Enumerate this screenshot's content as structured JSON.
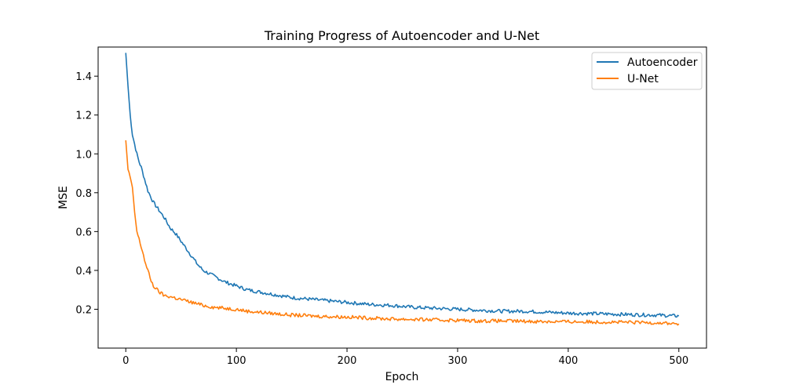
{
  "chart_data": {
    "type": "line",
    "title": "Training Progress of Autoencoder and U-Net",
    "xlabel": "Epoch",
    "ylabel": "MSE",
    "xlim": [
      -25,
      525
    ],
    "ylim": [
      0.0,
      1.55
    ],
    "xticks": [
      0,
      100,
      200,
      300,
      400,
      500
    ],
    "yticks": [
      0.2,
      0.4,
      0.6,
      0.8,
      1.0,
      1.2,
      1.4
    ],
    "xtick_labels": [
      "0",
      "100",
      "200",
      "300",
      "400",
      "500"
    ],
    "ytick_labels": [
      "0.2",
      "0.4",
      "0.6",
      "0.8",
      "1.0",
      "1.2",
      "1.4"
    ],
    "grid": false,
    "legend_position": "top-right",
    "series": [
      {
        "name": "Autoencoder",
        "color": "#1f77b4",
        "x": [
          0,
          2,
          4,
          6,
          8,
          10,
          12,
          14,
          16,
          18,
          20,
          25,
          30,
          35,
          40,
          45,
          50,
          55,
          60,
          65,
          70,
          80,
          90,
          100,
          110,
          120,
          130,
          140,
          150,
          160,
          170,
          180,
          190,
          200,
          220,
          240,
          260,
          280,
          300,
          320,
          340,
          360,
          380,
          400,
          420,
          440,
          460,
          480,
          500
        ],
        "values": [
          1.52,
          1.35,
          1.2,
          1.1,
          1.05,
          1.0,
          0.96,
          0.93,
          0.89,
          0.85,
          0.81,
          0.75,
          0.71,
          0.67,
          0.62,
          0.59,
          0.55,
          0.51,
          0.47,
          0.43,
          0.4,
          0.37,
          0.34,
          0.32,
          0.3,
          0.29,
          0.28,
          0.27,
          0.26,
          0.255,
          0.25,
          0.245,
          0.24,
          0.235,
          0.225,
          0.22,
          0.21,
          0.205,
          0.2,
          0.195,
          0.19,
          0.19,
          0.185,
          0.18,
          0.178,
          0.175,
          0.172,
          0.17,
          0.165
        ]
      },
      {
        "name": "U-Net",
        "color": "#ff7f0e",
        "x": [
          0,
          2,
          4,
          6,
          8,
          10,
          12,
          14,
          16,
          18,
          20,
          22,
          25,
          30,
          35,
          40,
          50,
          60,
          70,
          80,
          90,
          100,
          110,
          120,
          130,
          140,
          150,
          160,
          170,
          180,
          200,
          220,
          240,
          260,
          280,
          300,
          320,
          340,
          360,
          380,
          400,
          420,
          440,
          460,
          480,
          500
        ],
        "values": [
          1.07,
          0.92,
          0.88,
          0.82,
          0.7,
          0.6,
          0.56,
          0.52,
          0.48,
          0.43,
          0.4,
          0.36,
          0.32,
          0.29,
          0.27,
          0.265,
          0.25,
          0.235,
          0.22,
          0.21,
          0.205,
          0.2,
          0.19,
          0.185,
          0.18,
          0.175,
          0.17,
          0.168,
          0.165,
          0.163,
          0.16,
          0.155,
          0.15,
          0.148,
          0.145,
          0.143,
          0.14,
          0.14,
          0.138,
          0.137,
          0.136,
          0.135,
          0.134,
          0.132,
          0.131,
          0.125
        ]
      }
    ]
  }
}
